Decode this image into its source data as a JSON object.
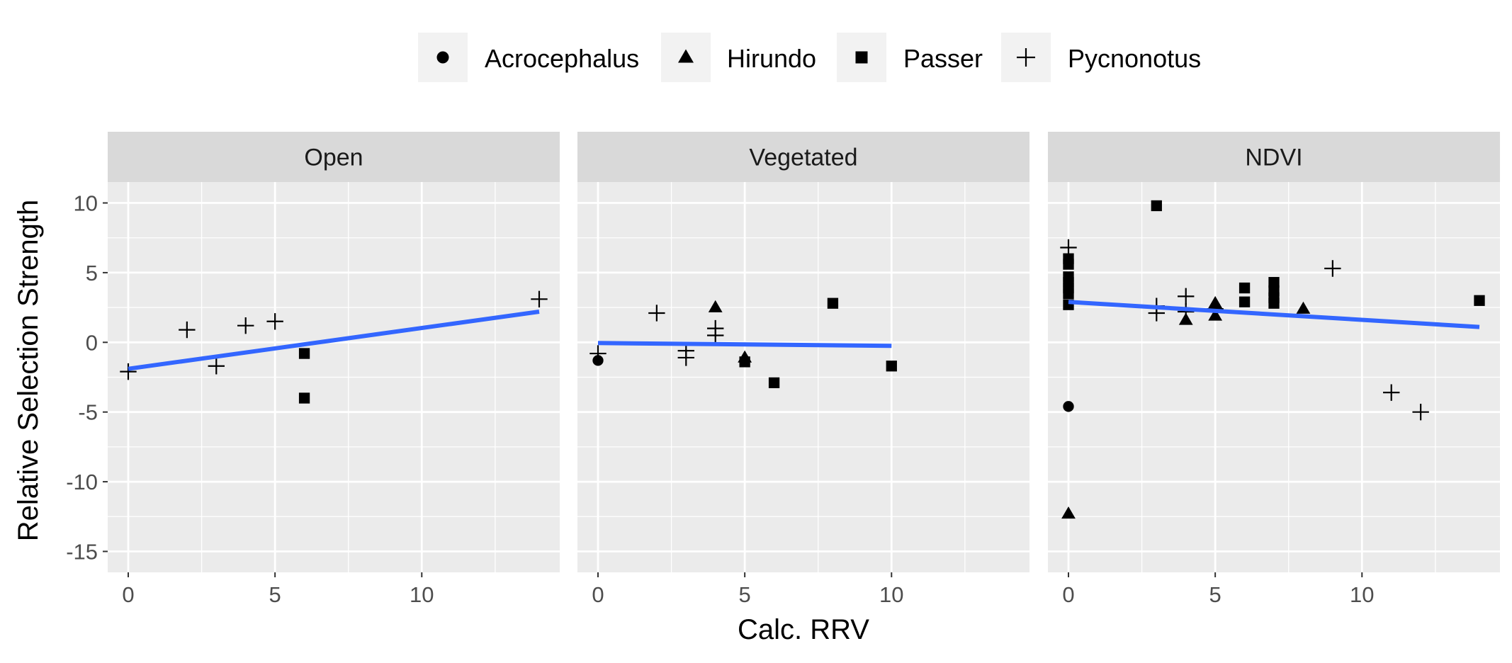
{
  "chart_data": {
    "type": "scatter",
    "xlabel": "Calc. RRV",
    "ylabel": "Relative Selection Strength",
    "xlim": [
      -0.7,
      14.7
    ],
    "ylim": [
      -16.5,
      11.5
    ],
    "x_ticks": [
      0,
      5,
      10
    ],
    "y_ticks": [
      10,
      5,
      0,
      -5,
      -10,
      -15
    ],
    "grid": true,
    "legend_position": "top",
    "legend": [
      {
        "name": "Acrocephalus",
        "shape": "circle"
      },
      {
        "name": "Hirundo",
        "shape": "triangle"
      },
      {
        "name": "Passer",
        "shape": "square"
      },
      {
        "name": "Pycnonotus",
        "shape": "plus"
      }
    ],
    "colors": {
      "points": "#000000",
      "trend_line": "#3366FF",
      "panel_bg": "#EBEBEB",
      "strip_bg": "#D9D9D9",
      "grid": "#FFFFFF"
    },
    "panels": [
      {
        "title": "Open",
        "points": [
          {
            "x": 0,
            "y": -2.1,
            "species": "Pycnonotus"
          },
          {
            "x": 2,
            "y": 0.9,
            "species": "Pycnonotus"
          },
          {
            "x": 3,
            "y": -1.7,
            "species": "Pycnonotus"
          },
          {
            "x": 4,
            "y": 1.2,
            "species": "Pycnonotus"
          },
          {
            "x": 5,
            "y": 1.5,
            "species": "Pycnonotus"
          },
          {
            "x": 6,
            "y": -0.8,
            "species": "Passer"
          },
          {
            "x": 6,
            "y": -4.0,
            "species": "Passer"
          },
          {
            "x": 14,
            "y": 3.1,
            "species": "Pycnonotus"
          }
        ],
        "fit": {
          "x": [
            0,
            14
          ],
          "y": [
            -1.9,
            2.2
          ]
        }
      },
      {
        "title": "Vegetated",
        "points": [
          {
            "x": 0,
            "y": -1.3,
            "species": "Acrocephalus"
          },
          {
            "x": 0,
            "y": -0.8,
            "species": "Pycnonotus"
          },
          {
            "x": 2,
            "y": 2.1,
            "species": "Pycnonotus"
          },
          {
            "x": 3,
            "y": -0.6,
            "species": "Pycnonotus"
          },
          {
            "x": 3,
            "y": -1.1,
            "species": "Pycnonotus"
          },
          {
            "x": 4,
            "y": 2.5,
            "species": "Hirundo"
          },
          {
            "x": 4,
            "y": 1.0,
            "species": "Pycnonotus"
          },
          {
            "x": 4,
            "y": 0.5,
            "species": "Pycnonotus"
          },
          {
            "x": 5,
            "y": -1.1,
            "species": "Hirundo"
          },
          {
            "x": 5,
            "y": -1.4,
            "species": "Passer"
          },
          {
            "x": 6,
            "y": -2.9,
            "species": "Passer"
          },
          {
            "x": 8,
            "y": 2.8,
            "species": "Passer"
          },
          {
            "x": 10,
            "y": -1.7,
            "species": "Passer"
          }
        ],
        "fit": {
          "x": [
            0,
            10
          ],
          "y": [
            -0.05,
            -0.25
          ]
        }
      },
      {
        "title": "NDVI",
        "points": [
          {
            "x": 0,
            "y": 6.8,
            "species": "Pycnonotus"
          },
          {
            "x": 0,
            "y": 6.0,
            "species": "Passer"
          },
          {
            "x": 0,
            "y": 5.6,
            "species": "Passer"
          },
          {
            "x": 0,
            "y": 4.7,
            "species": "Passer"
          },
          {
            "x": 0,
            "y": 4.3,
            "species": "Passer"
          },
          {
            "x": 0,
            "y": 3.9,
            "species": "Passer"
          },
          {
            "x": 0,
            "y": 3.5,
            "species": "Passer"
          },
          {
            "x": 0,
            "y": 2.7,
            "species": "Passer"
          },
          {
            "x": 0,
            "y": -4.6,
            "species": "Acrocephalus"
          },
          {
            "x": 0,
            "y": -12.3,
            "species": "Hirundo"
          },
          {
            "x": 3,
            "y": 9.8,
            "species": "Passer"
          },
          {
            "x": 3,
            "y": 2.6,
            "species": "Pycnonotus"
          },
          {
            "x": 3,
            "y": 2.1,
            "species": "Pycnonotus"
          },
          {
            "x": 4,
            "y": 3.3,
            "species": "Pycnonotus"
          },
          {
            "x": 4,
            "y": 1.6,
            "species": "Hirundo"
          },
          {
            "x": 4,
            "y": 2.2,
            "species": "Pycnonotus"
          },
          {
            "x": 5,
            "y": 2.8,
            "species": "Hirundo"
          },
          {
            "x": 5,
            "y": 2.4,
            "species": "Pycnonotus"
          },
          {
            "x": 5,
            "y": 1.9,
            "species": "Hirundo"
          },
          {
            "x": 6,
            "y": 3.9,
            "species": "Passer"
          },
          {
            "x": 6,
            "y": 2.9,
            "species": "Passer"
          },
          {
            "x": 7,
            "y": 4.3,
            "species": "Passer"
          },
          {
            "x": 7,
            "y": 3.7,
            "species": "Passer"
          },
          {
            "x": 7,
            "y": 3.2,
            "species": "Passer"
          },
          {
            "x": 7,
            "y": 2.8,
            "species": "Passer"
          },
          {
            "x": 8,
            "y": 2.4,
            "species": "Hirundo"
          },
          {
            "x": 9,
            "y": 5.3,
            "species": "Pycnonotus"
          },
          {
            "x": 11,
            "y": -3.6,
            "species": "Pycnonotus"
          },
          {
            "x": 12,
            "y": -5.0,
            "species": "Pycnonotus"
          },
          {
            "x": 14,
            "y": 3.0,
            "species": "Passer"
          }
        ],
        "fit": {
          "x": [
            0,
            14
          ],
          "y": [
            2.9,
            1.1
          ]
        }
      }
    ]
  }
}
